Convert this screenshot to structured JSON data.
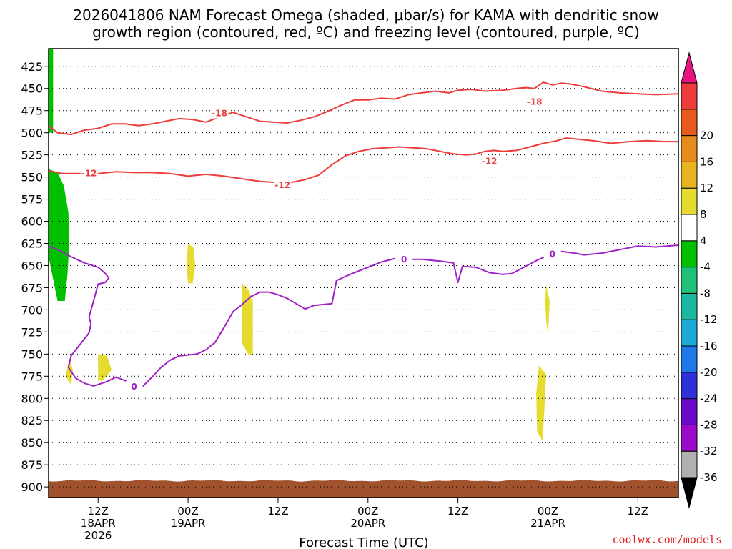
{
  "chart_data": {
    "type": "contour",
    "title_line1": "2026041806 NAM Forecast Omega (shaded, μbar/s) for KAMA with dendritic snow",
    "title_line2": "growth region (contoured, red, ºC) and freezing level (contoured, purple, ºC)",
    "xlabel": "Forecast Time (UTC)",
    "credit": "coolwx.com/models",
    "ylim": [
      405,
      912
    ],
    "xlim": [
      -5.5,
      64.5
    ],
    "y_ticks": [
      425,
      450,
      475,
      500,
      525,
      550,
      575,
      600,
      625,
      650,
      675,
      700,
      725,
      750,
      775,
      800,
      825,
      850,
      875,
      900
    ],
    "x_ticks": [
      {
        "t": 0,
        "label": "12Z",
        "date": "18APR",
        "year": "2026"
      },
      {
        "t": 10,
        "label": "00Z",
        "date": "19APR",
        "year": ""
      },
      {
        "t": 20,
        "label": "12Z",
        "date": "",
        "year": ""
      },
      {
        "t": 30,
        "label": "00Z",
        "date": "20APR",
        "year": ""
      },
      {
        "t": 40,
        "label": "12Z",
        "date": "",
        "year": ""
      },
      {
        "t": 50,
        "label": "00Z",
        "date": "21APR",
        "year": ""
      },
      {
        "t": 60,
        "label": "12Z",
        "date": "",
        "year": ""
      }
    ],
    "colorbar": {
      "colors": [
        "#b0b0b0",
        "#9a0ac8",
        "#6a0ac8",
        "#3030d8",
        "#1e78e8",
        "#1eaad8",
        "#1eb8a0",
        "#20c078",
        "#00c000",
        "#ffffff",
        "#e6dc30",
        "#e6b420",
        "#e68c1e",
        "#e65a1e",
        "#ee3c3c"
      ],
      "labels": [
        "-36",
        "-32",
        "-28",
        "-24",
        "-20",
        "-16",
        "-12",
        "-8",
        "-4",
        "4",
        "8",
        "12",
        "16",
        "20"
      ],
      "over_color": "#e61480",
      "under_color": "#000000"
    },
    "series": [
      {
        "name": "-18 isotherm",
        "color": "#ee3c3c",
        "label": "-18",
        "label_positions": [
          [
            13.5,
            478
          ],
          [
            48.5,
            465
          ]
        ],
        "points": [
          [
            -5.5,
            492
          ],
          [
            -4.5,
            500
          ],
          [
            -3,
            502
          ],
          [
            -1.5,
            497
          ],
          [
            0,
            495
          ],
          [
            1.5,
            490
          ],
          [
            3,
            490
          ],
          [
            4.5,
            492
          ],
          [
            6,
            490
          ],
          [
            7.5,
            487
          ],
          [
            9,
            484
          ],
          [
            10.5,
            485
          ],
          [
            12,
            488
          ],
          [
            13.5,
            482
          ],
          [
            15,
            477
          ],
          [
            16.5,
            482
          ],
          [
            18,
            487
          ],
          [
            19.5,
            488
          ],
          [
            21,
            489
          ],
          [
            22.5,
            486
          ],
          [
            24,
            482
          ],
          [
            25.5,
            476
          ],
          [
            27,
            469
          ],
          [
            28.5,
            463
          ],
          [
            30,
            463
          ],
          [
            31.5,
            461
          ],
          [
            33,
            462
          ],
          [
            34.5,
            457
          ],
          [
            36,
            455
          ],
          [
            37.5,
            453
          ],
          [
            39,
            455
          ],
          [
            40,
            452
          ],
          [
            41.5,
            451
          ],
          [
            43,
            453
          ],
          [
            45,
            452
          ],
          [
            46.5,
            450
          ],
          [
            47.5,
            449
          ],
          [
            48.5,
            450
          ],
          [
            49.5,
            443
          ],
          [
            50.5,
            446
          ],
          [
            51.5,
            444
          ],
          [
            52.5,
            445
          ],
          [
            54,
            448
          ],
          [
            56,
            453
          ],
          [
            58,
            455
          ],
          [
            60,
            456
          ],
          [
            62,
            457
          ],
          [
            64.5,
            456
          ]
        ]
      },
      {
        "name": "-12 isotherm",
        "color": "#ee3c3c",
        "label": "-12",
        "label_positions": [
          [
            -1,
            546
          ],
          [
            20.5,
            559
          ],
          [
            43.5,
            532
          ]
        ],
        "points": [
          [
            -5.5,
            543
          ],
          [
            -4,
            546
          ],
          [
            -2,
            546
          ],
          [
            0,
            546
          ],
          [
            2,
            544
          ],
          [
            4,
            545
          ],
          [
            6,
            545
          ],
          [
            8,
            546
          ],
          [
            10,
            549
          ],
          [
            12,
            547
          ],
          [
            14,
            549
          ],
          [
            16,
            552
          ],
          [
            18,
            555
          ],
          [
            19.5,
            556
          ],
          [
            21,
            557
          ],
          [
            23,
            553
          ],
          [
            24.5,
            548
          ],
          [
            26,
            536
          ],
          [
            27.5,
            526
          ],
          [
            29,
            521
          ],
          [
            30.5,
            518
          ],
          [
            32,
            517
          ],
          [
            33.5,
            516
          ],
          [
            35,
            517
          ],
          [
            36.5,
            518
          ],
          [
            38,
            521
          ],
          [
            39.5,
            524
          ],
          [
            41,
            525
          ],
          [
            42,
            524
          ],
          [
            43,
            521
          ],
          [
            44,
            520
          ],
          [
            45,
            521
          ],
          [
            46.5,
            520
          ],
          [
            48,
            516
          ],
          [
            49.5,
            512
          ],
          [
            51,
            509
          ],
          [
            52,
            506
          ],
          [
            53,
            507
          ],
          [
            55,
            509
          ],
          [
            57,
            512
          ],
          [
            59,
            510
          ],
          [
            61,
            509
          ],
          [
            63,
            510
          ],
          [
            64.5,
            510
          ]
        ]
      },
      {
        "name": "0 isotherm (freezing level)",
        "color": "#a020c8",
        "label": "0",
        "label_positions": [
          [
            4,
            787
          ],
          [
            34,
            643
          ],
          [
            50.5,
            637
          ]
        ],
        "points": [
          [
            -5.5,
            628
          ],
          [
            -4.5,
            632
          ],
          [
            -3,
            640
          ],
          [
            -1.5,
            647
          ],
          [
            0,
            652
          ],
          [
            0.8,
            659
          ],
          [
            1.2,
            664
          ],
          [
            0.8,
            669
          ],
          [
            0,
            671
          ],
          [
            -0.5,
            690
          ],
          [
            -1,
            708
          ],
          [
            -0.8,
            716
          ],
          [
            -1,
            726
          ],
          [
            -2,
            739
          ],
          [
            -3,
            752
          ],
          [
            -3.3,
            765
          ],
          [
            -2.5,
            777
          ],
          [
            -1.5,
            783
          ],
          [
            -0.5,
            786
          ],
          [
            1,
            781
          ],
          [
            2,
            776
          ],
          [
            3,
            780
          ],
          [
            4,
            787
          ],
          [
            5,
            786
          ],
          [
            6,
            776
          ],
          [
            7,
            765
          ],
          [
            8,
            757
          ],
          [
            9,
            752
          ],
          [
            10,
            751
          ],
          [
            11,
            750
          ],
          [
            12,
            745
          ],
          [
            13,
            737
          ],
          [
            14,
            720
          ],
          [
            15,
            702
          ],
          [
            16,
            694
          ],
          [
            17,
            685
          ],
          [
            18,
            680
          ],
          [
            19,
            680
          ],
          [
            20,
            683
          ],
          [
            21,
            687
          ],
          [
            22,
            693
          ],
          [
            23,
            699
          ],
          [
            24,
            695
          ],
          [
            25,
            694
          ],
          [
            26,
            693
          ],
          [
            26.5,
            667
          ],
          [
            28,
            660
          ],
          [
            30,
            652
          ],
          [
            31.5,
            646
          ],
          [
            33,
            642
          ],
          [
            34,
            643
          ],
          [
            36,
            643
          ],
          [
            38,
            645
          ],
          [
            39.5,
            647
          ],
          [
            40,
            669
          ],
          [
            40.5,
            651
          ],
          [
            42,
            652
          ],
          [
            43.5,
            658
          ],
          [
            45,
            660
          ],
          [
            46,
            659
          ],
          [
            47.5,
            651
          ],
          [
            49,
            643
          ],
          [
            50.5,
            637
          ],
          [
            51.5,
            634
          ],
          [
            53,
            636
          ],
          [
            54,
            638
          ],
          [
            56,
            636
          ],
          [
            58,
            632
          ],
          [
            60,
            628
          ],
          [
            62,
            629
          ],
          [
            64.5,
            627
          ]
        ]
      }
    ],
    "shaded_regions": [
      {
        "value": -6,
        "color": "#00c000",
        "points": [
          [
            -5.5,
            405
          ],
          [
            -5,
            405
          ],
          [
            -5,
            500
          ],
          [
            -5.5,
            500
          ]
        ]
      },
      {
        "value": -6,
        "color": "#00c000",
        "points": [
          [
            -5.5,
            541
          ],
          [
            -4.5,
            545
          ],
          [
            -3.8,
            560
          ],
          [
            -3.3,
            590
          ],
          [
            -3.2,
            625
          ],
          [
            -3.4,
            660
          ],
          [
            -3.7,
            690
          ],
          [
            -4.5,
            690
          ],
          [
            -5,
            665
          ],
          [
            -5.5,
            640
          ]
        ]
      },
      {
        "value": 5,
        "color": "#e6dc30",
        "points": [
          [
            -3.2,
            755
          ],
          [
            -2.8,
            768
          ],
          [
            -3,
            785
          ],
          [
            -3.6,
            775
          ]
        ]
      },
      {
        "value": 5,
        "color": "#e6dc30",
        "points": [
          [
            0,
            750
          ],
          [
            1,
            752
          ],
          [
            1.5,
            768
          ],
          [
            0.5,
            780
          ],
          [
            0,
            780
          ]
        ]
      },
      {
        "value": 5,
        "color": "#e6dc30",
        "points": [
          [
            10,
            625
          ],
          [
            10.6,
            630
          ],
          [
            10.8,
            650
          ],
          [
            10.5,
            670
          ],
          [
            10,
            670
          ],
          [
            9.8,
            648
          ]
        ]
      },
      {
        "value": 5,
        "color": "#e6dc30",
        "points": [
          [
            16,
            670
          ],
          [
            16.7,
            677
          ],
          [
            17.2,
            690
          ],
          [
            17.2,
            750
          ],
          [
            16.8,
            752
          ],
          [
            16,
            738
          ]
        ]
      },
      {
        "value": 5,
        "color": "#e6dc30",
        "points": [
          [
            49.8,
            672
          ],
          [
            50.2,
            690
          ],
          [
            50,
            729
          ],
          [
            49.8,
            712
          ],
          [
            49.7,
            690
          ]
        ]
      },
      {
        "value": 5,
        "color": "#e6dc30",
        "points": [
          [
            49,
            763
          ],
          [
            49.8,
            773
          ],
          [
            49.6,
            812
          ],
          [
            49.4,
            848
          ],
          [
            48.8,
            838
          ],
          [
            48.7,
            795
          ]
        ]
      }
    ],
    "terrain_top": 893
  }
}
